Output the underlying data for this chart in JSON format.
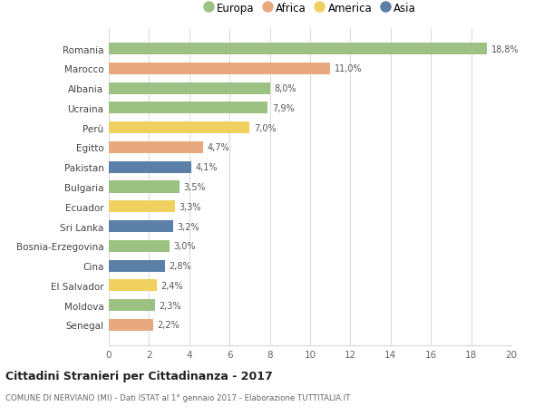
{
  "categories": [
    "Romania",
    "Marocco",
    "Albania",
    "Ucraina",
    "Perù",
    "Egitto",
    "Pakistan",
    "Bulgaria",
    "Ecuador",
    "Sri Lanka",
    "Bosnia-Erzegovina",
    "Cina",
    "El Salvador",
    "Moldova",
    "Senegal"
  ],
  "values": [
    18.8,
    11.0,
    8.0,
    7.9,
    7.0,
    4.7,
    4.1,
    3.5,
    3.3,
    3.2,
    3.0,
    2.8,
    2.4,
    2.3,
    2.2
  ],
  "labels": [
    "18,8%",
    "11,0%",
    "8,0%",
    "7,9%",
    "7,0%",
    "4,7%",
    "4,1%",
    "3,5%",
    "3,3%",
    "3,2%",
    "3,0%",
    "2,8%",
    "2,4%",
    "2,3%",
    "2,2%"
  ],
  "continents": [
    "Europa",
    "Africa",
    "Europa",
    "Europa",
    "America",
    "Africa",
    "Asia",
    "Europa",
    "America",
    "Asia",
    "Europa",
    "Asia",
    "America",
    "Europa",
    "Africa"
  ],
  "colors": {
    "Europa": "#9dc183",
    "Africa": "#e8a97e",
    "America": "#f0d060",
    "Asia": "#5b7fa6"
  },
  "legend_order": [
    "Europa",
    "Africa",
    "America",
    "Asia"
  ],
  "xlim": [
    0,
    20
  ],
  "xticks": [
    0,
    2,
    4,
    6,
    8,
    10,
    12,
    14,
    16,
    18,
    20
  ],
  "title": "Cittadini Stranieri per Cittadinanza - 2017",
  "subtitle": "COMUNE DI NERVIANO (MI) - Dati ISTAT al 1° gennaio 2017 - Elaborazione TUTTITALIA.IT",
  "background_color": "#ffffff",
  "grid_color": "#d8d8d8"
}
